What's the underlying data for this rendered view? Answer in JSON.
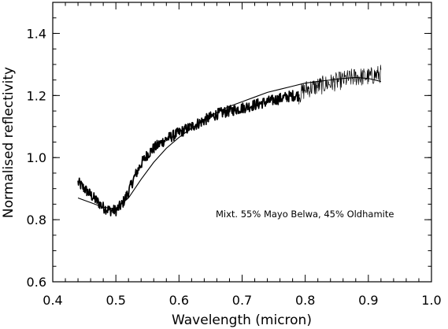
{
  "chart_data": {
    "type": "line",
    "title": "",
    "xlabel": "Wavelength (micron)",
    "ylabel": "Normalised reflectivity",
    "xlim": [
      0.4,
      1.0
    ],
    "ylim": [
      0.6,
      1.5
    ],
    "xticks": [
      0.4,
      0.5,
      0.6,
      0.7,
      0.8,
      0.9,
      1.0
    ],
    "xtick_labels": [
      "0.4",
      "0.5",
      "0.6",
      "0.7",
      "0.8",
      "0.9",
      "1.0"
    ],
    "yticks": [
      0.6,
      0.8,
      1.0,
      1.2,
      1.4
    ],
    "ytick_labels": [
      "0.6",
      "0.8",
      "1.0",
      "1.2",
      "1.4"
    ],
    "grid": false,
    "annotation": "Mixt. 55% Mayo Belwa, 45% Oldhamite",
    "series": [
      {
        "style": "noisy-spectrum-thick",
        "color": "#000000",
        "x": [
          0.44,
          0.45,
          0.46,
          0.47,
          0.48,
          0.49,
          0.5,
          0.51,
          0.52,
          0.53,
          0.54,
          0.55,
          0.56,
          0.58,
          0.6,
          0.62,
          0.64,
          0.66,
          0.68,
          0.7,
          0.72,
          0.74,
          0.76,
          0.78,
          0.79
        ],
        "y": [
          0.92,
          0.9,
          0.88,
          0.86,
          0.84,
          0.83,
          0.83,
          0.85,
          0.89,
          0.94,
          0.98,
          1.01,
          1.03,
          1.06,
          1.08,
          1.1,
          1.12,
          1.14,
          1.15,
          1.16,
          1.17,
          1.18,
          1.19,
          1.2,
          1.2
        ],
        "noise": 0.018
      },
      {
        "style": "noisy-spectrum-thin",
        "color": "#000000",
        "x": [
          0.79,
          0.8,
          0.82,
          0.84,
          0.86,
          0.88,
          0.9,
          0.92
        ],
        "y": [
          1.2,
          1.22,
          1.23,
          1.24,
          1.25,
          1.26,
          1.26,
          1.27
        ],
        "noise": 0.03
      },
      {
        "style": "model-fit",
        "color": "#000000",
        "x": [
          0.44,
          0.46,
          0.48,
          0.5,
          0.52,
          0.54,
          0.56,
          0.58,
          0.6,
          0.62,
          0.64,
          0.66,
          0.68,
          0.7,
          0.72,
          0.74,
          0.76,
          0.78,
          0.8,
          0.82,
          0.84,
          0.86,
          0.88,
          0.9,
          0.92
        ],
        "y": [
          0.87,
          0.855,
          0.84,
          0.835,
          0.87,
          0.93,
          0.985,
          1.03,
          1.065,
          1.095,
          1.12,
          1.145,
          1.165,
          1.18,
          1.195,
          1.21,
          1.22,
          1.23,
          1.24,
          1.245,
          1.25,
          1.255,
          1.258,
          1.255,
          1.245
        ]
      }
    ]
  }
}
